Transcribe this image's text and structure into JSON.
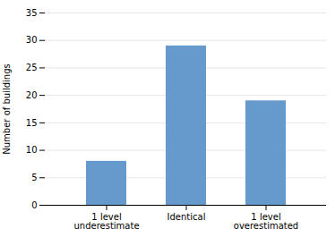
{
  "chart_data": {
    "type": "bar",
    "categories": [
      "1 level\nunderestimate",
      "Identical",
      "1 level\noverestimated"
    ],
    "values": [
      8,
      29,
      19
    ],
    "color": "#6699cc",
    "ylabel": "Number of buildings",
    "ylim": [
      0,
      35
    ],
    "yticks": [
      0,
      5,
      10,
      15,
      20,
      25,
      30,
      35
    ],
    "grid": true
  }
}
